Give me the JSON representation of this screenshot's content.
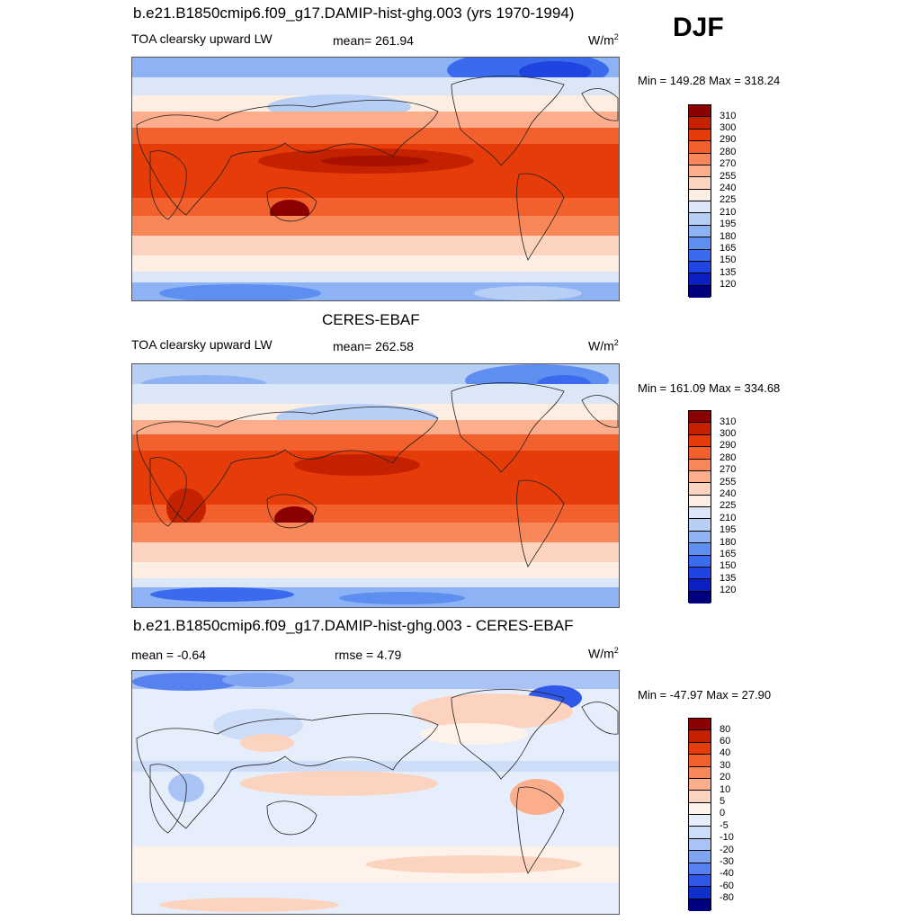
{
  "season": "DJF",
  "panels": [
    {
      "title": "b.e21.B1850cmip6.f09_g17.DAMIP-hist-ghg.003 (yrs 1970-1994)",
      "left_label": "TOA clearsky upward LW",
      "center_label": "mean= 261.94",
      "units": "W/m",
      "units_sup": "2",
      "minmax": "Min = 149.28 Max = 318.24"
    },
    {
      "title": "CERES-EBAF",
      "left_label": "TOA clearsky upward LW",
      "center_label": "mean= 262.58",
      "units": "W/m",
      "units_sup": "2",
      "minmax": "Min = 161.09 Max = 334.68"
    },
    {
      "title": "b.e21.B1850cmip6.f09_g17.DAMIP-hist-ghg.003 - CERES-EBAF",
      "left_label": "mean =  -0.64",
      "center_label": "rmse =   4.79",
      "units": "W/m",
      "units_sup": "2",
      "minmax": "Min = -47.97 Max =  27.90"
    }
  ],
  "colorbars": {
    "absolute": {
      "levels": [
        "310",
        "300",
        "290",
        "280",
        "270",
        "255",
        "240",
        "225",
        "210",
        "195",
        "180",
        "165",
        "150",
        "135",
        "120"
      ],
      "colors": [
        "#8b0000",
        "#c42100",
        "#e53c09",
        "#f2612d",
        "#f8875a",
        "#fbad8c",
        "#fcd3bf",
        "#fdeee3",
        "#dbe7f7",
        "#b8cff5",
        "#8db3f4",
        "#5e8ff0",
        "#3a6bee",
        "#1f44e0",
        "#0a20c0",
        "#00007f"
      ]
    },
    "difference": {
      "levels": [
        "80",
        "60",
        "40",
        "30",
        "20",
        "10",
        "5",
        "0",
        "-5",
        "-10",
        "-20",
        "-30",
        "-40",
        "-60",
        "-80"
      ],
      "colors": [
        "#8b0000",
        "#c42100",
        "#e53c09",
        "#f2612d",
        "#f8875a",
        "#fbad8c",
        "#fcd3bf",
        "#fdf3eb",
        "#e7eefb",
        "#cddcf7",
        "#a9c3f5",
        "#7fa5f2",
        "#5681ef",
        "#2f58e8",
        "#1030cc",
        "#00007f"
      ]
    }
  },
  "chart_data": [
    {
      "type": "heatmap",
      "title": "b.e21.B1850cmip6.f09_g17.DAMIP-hist-ghg.003 (yrs 1970-1994)",
      "variable": "TOA clearsky upward LW",
      "units": "W/m2",
      "season": "DJF",
      "mean": 261.94,
      "min": 149.28,
      "max": 318.24,
      "contour_levels": [
        120,
        135,
        150,
        165,
        180,
        195,
        210,
        225,
        240,
        255,
        270,
        280,
        290,
        300,
        310
      ]
    },
    {
      "type": "heatmap",
      "title": "CERES-EBAF",
      "variable": "TOA clearsky upward LW",
      "units": "W/m2",
      "season": "DJF",
      "mean": 262.58,
      "min": 161.09,
      "max": 334.68,
      "contour_levels": [
        120,
        135,
        150,
        165,
        180,
        195,
        210,
        225,
        240,
        255,
        270,
        280,
        290,
        300,
        310
      ]
    },
    {
      "type": "heatmap",
      "title": "b.e21.B1850cmip6.f09_g17.DAMIP-hist-ghg.003 - CERES-EBAF",
      "units": "W/m2",
      "season": "DJF",
      "mean": -0.64,
      "rmse": 4.79,
      "min": -47.97,
      "max": 27.9,
      "contour_levels": [
        -80,
        -60,
        -40,
        -30,
        -20,
        -10,
        -5,
        0,
        5,
        10,
        20,
        30,
        40,
        60,
        80
      ]
    }
  ]
}
